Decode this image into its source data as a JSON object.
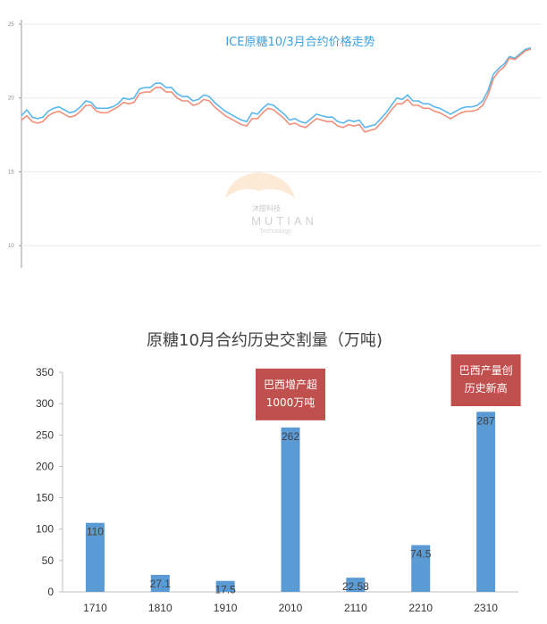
{
  "chart_data": [
    {
      "type": "line",
      "title": "ICE原糖10/3月合约价格走势",
      "ylim": [
        8.5,
        25
      ],
      "yticks": [
        10,
        15,
        20,
        25
      ],
      "x_count": 96,
      "series": [
        {
          "color": "#5bb7ee",
          "values": [
            18.8,
            19.2,
            18.7,
            18.6,
            18.7,
            19.1,
            19.3,
            19.4,
            19.2,
            19.0,
            19.1,
            19.4,
            19.8,
            19.7,
            19.3,
            19.3,
            19.3,
            19.4,
            19.6,
            20.0,
            19.9,
            20.0,
            20.6,
            20.7,
            20.7,
            21.0,
            21.0,
            20.7,
            20.7,
            20.3,
            20.1,
            20.1,
            19.8,
            19.9,
            20.2,
            20.1,
            19.7,
            19.4,
            19.1,
            18.9,
            18.7,
            18.5,
            18.4,
            19.0,
            18.9,
            19.3,
            19.6,
            19.5,
            19.2,
            18.9,
            18.5,
            18.6,
            18.4,
            18.3,
            18.6,
            18.9,
            18.8,
            18.7,
            18.7,
            18.4,
            18.3,
            18.5,
            18.4,
            18.5,
            18.0,
            18.1,
            18.2,
            18.6,
            19.0,
            19.5,
            20.0,
            19.9,
            20.2,
            19.8,
            19.8,
            19.6,
            19.6,
            19.4,
            19.3,
            19.1,
            18.9,
            19.1,
            19.3,
            19.4,
            19.4,
            19.5,
            19.8,
            20.5,
            21.6,
            22.0,
            22.3,
            22.8,
            22.7,
            23.0,
            23.3,
            23.4
          ]
        },
        {
          "color": "#f0907c",
          "values": [
            18.5,
            18.8,
            18.4,
            18.3,
            18.4,
            18.8,
            19.0,
            19.1,
            18.9,
            18.7,
            18.8,
            19.1,
            19.5,
            19.5,
            19.1,
            19.0,
            19.0,
            19.2,
            19.4,
            19.7,
            19.6,
            19.7,
            20.3,
            20.4,
            20.4,
            20.7,
            20.7,
            20.4,
            20.4,
            20.0,
            19.8,
            19.8,
            19.5,
            19.6,
            19.9,
            19.8,
            19.4,
            19.1,
            18.8,
            18.6,
            18.4,
            18.2,
            18.1,
            18.6,
            18.6,
            19.0,
            19.3,
            19.2,
            18.9,
            18.6,
            18.2,
            18.3,
            18.1,
            18.0,
            18.3,
            18.6,
            18.5,
            18.4,
            18.4,
            18.1,
            18.0,
            18.2,
            18.1,
            18.2,
            17.7,
            17.8,
            17.9,
            18.3,
            18.7,
            19.2,
            19.6,
            19.6,
            19.9,
            19.5,
            19.5,
            19.3,
            19.3,
            19.1,
            19.0,
            18.8,
            18.6,
            18.8,
            19.0,
            19.1,
            19.1,
            19.2,
            19.5,
            20.2,
            21.3,
            21.8,
            22.1,
            22.7,
            22.6,
            22.9,
            23.2,
            23.3
          ]
        }
      ],
      "watermark": {
        "brand_cn": "沐甜科技",
        "brand_en": "MUTIAN",
        "tagline": "Technology"
      }
    },
    {
      "type": "bar",
      "title": "原糖10月合约历史交割量（万吨)",
      "categories": [
        "1710",
        "1810",
        "1910",
        "2010",
        "2110",
        "2210",
        "2310"
      ],
      "values": [
        110,
        27.1,
        17.5,
        262,
        22.58,
        74.5,
        287
      ],
      "labels": [
        "110",
        "27.1",
        "17.5",
        "262",
        "22.58",
        "74.5",
        "287"
      ],
      "ylim": [
        0,
        350
      ],
      "yticks": [
        0,
        50,
        100,
        150,
        200,
        250,
        300,
        350
      ],
      "bar_color": "#5b9bd5",
      "annotations": [
        {
          "category": "2010",
          "lines": [
            "巴西增产超",
            "1000万吨"
          ],
          "color": "#c0504d"
        },
        {
          "category": "2310",
          "lines": [
            "巴西产量创",
            "历史新高"
          ],
          "color": "#c0504d"
        }
      ]
    }
  ]
}
